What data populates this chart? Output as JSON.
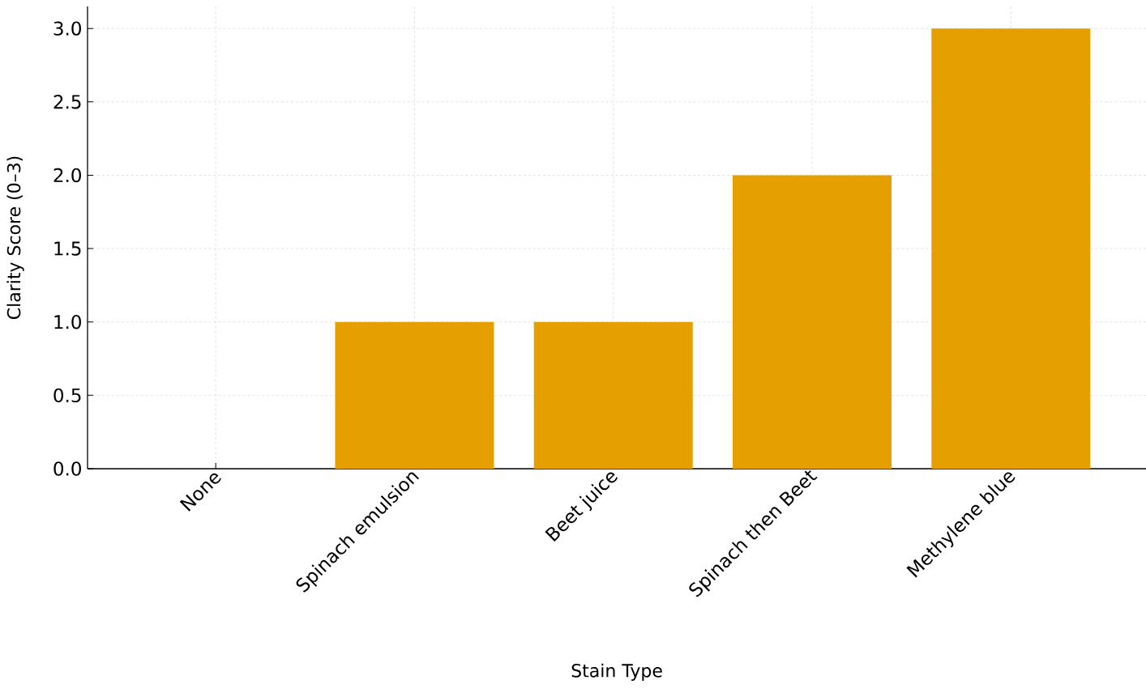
{
  "chart_data": {
    "type": "bar",
    "xlabel": "Stain Type",
    "ylabel": "Clarity Score (0–3)",
    "categories": [
      "None",
      "Spinach emulsion",
      "Beet juice",
      "Spinach then Beet",
      "Methylene blue"
    ],
    "values": [
      0,
      1,
      1,
      2,
      3
    ],
    "color": "#e5a000",
    "ylim": [
      0,
      3.15
    ],
    "yticks": [
      {
        "value": 0,
        "label": "0.0"
      },
      0.5,
      {
        "value": 1,
        "label": "1.0"
      },
      1.5,
      {
        "value": 2,
        "label": "2.0"
      },
      2.5,
      {
        "value": 3,
        "label": "3.0"
      }
    ],
    "grid": true
  }
}
